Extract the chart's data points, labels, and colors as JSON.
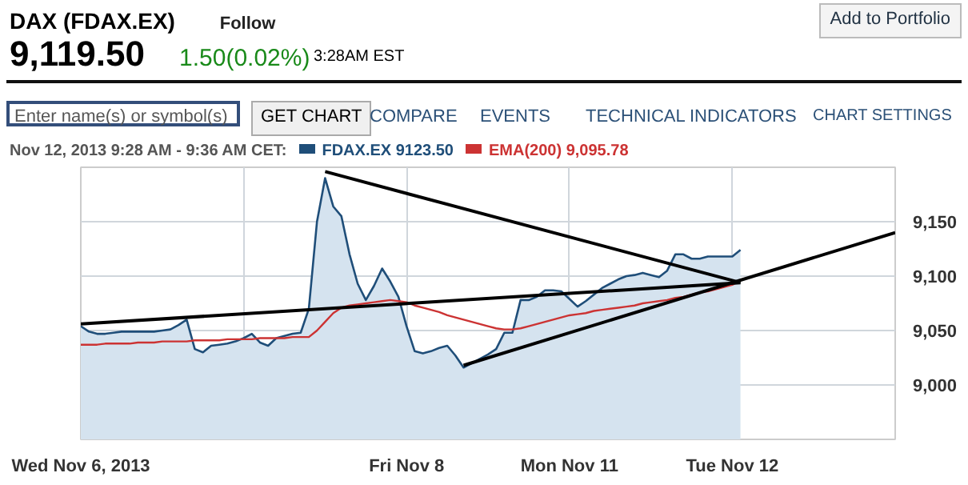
{
  "chart_data": {
    "type": "area",
    "title": "DAX (FDAX.EX)",
    "subtitle": "9,119.50",
    "annotations": [
      "Follow",
      "Add to Portfolio",
      "1.50(0.02%)",
      "3:28AM EST",
      "Enter name(s) or symbol(s)",
      "GET CHART",
      "COMPARE",
      "EVENTS",
      "TECHNICAL INDICATORS",
      "CHART SETTINGS"
    ],
    "legend_title": "Nov 12, 2013 9:28 AM - 9:36 AM CET:",
    "categories": [
      "Wed Nov 6, 2013",
      null,
      null,
      null,
      null,
      null,
      null,
      null,
      null,
      null,
      null,
      null,
      null,
      null,
      null,
      null,
      null,
      null,
      null,
      null,
      null,
      null,
      null,
      null,
      null,
      null,
      null,
      null,
      null,
      null,
      null,
      null,
      null,
      null,
      null,
      null,
      null,
      null,
      null,
      null,
      "Fri Nov 8",
      null,
      null,
      null,
      null,
      null,
      null,
      null,
      null,
      null,
      null,
      null,
      null,
      null,
      null,
      null,
      null,
      null,
      null,
      null,
      "Mon Nov 11",
      null,
      null,
      null,
      null,
      null,
      null,
      null,
      null,
      null,
      null,
      null,
      null,
      null,
      null,
      null,
      null,
      null,
      null,
      null,
      "Tue Nov 12",
      null,
      null,
      null,
      null,
      null,
      null,
      null,
      null,
      null,
      null,
      null,
      null,
      null,
      null,
      null,
      null,
      null,
      null,
      null,
      null
    ],
    "ylim": [
      8950,
      9200
    ],
    "yticks": [
      {
        "value": 9000,
        "label": "9,000"
      },
      {
        "value": 9050,
        "label": "9,050"
      },
      {
        "value": 9100,
        "label": "9,100"
      },
      {
        "value": 9150,
        "label": "9,150"
      }
    ],
    "grid": true,
    "legend": "top left",
    "series": [
      {
        "name": "FDAX.EX 9123.50",
        "color": "#1f4e79",
        "values": [
          9054,
          9049,
          9047,
          9047,
          9048,
          9049,
          9049,
          9049,
          9049,
          9049,
          9050,
          9051,
          9055,
          9060,
          9033,
          9030,
          9036,
          9037,
          9038,
          9040,
          9043,
          9047,
          9039,
          9036,
          9043,
          9045,
          9047,
          9048,
          9070,
          9150,
          9190,
          9164,
          9155,
          9120,
          9093,
          9078,
          9091,
          9107,
          9095,
          9081,
          9054,
          9031,
          9029,
          9031,
          9034,
          9036,
          9027,
          9016,
          9020,
          9024,
          9028,
          9033,
          9048,
          9048,
          9078,
          9078,
          9081,
          9087,
          9087,
          9086,
          9079,
          9072,
          9077,
          9083,
          9089,
          9093,
          9097,
          9100,
          9101,
          9103,
          9101,
          9099,
          9105,
          9120,
          9120,
          9116,
          9116,
          9118,
          9118,
          9118,
          9118,
          9124,
          null,
          null,
          null,
          null,
          null,
          null,
          null,
          null,
          null,
          null,
          null,
          null,
          null,
          null,
          null,
          null,
          null,
          null,
          null
        ]
      },
      {
        "name": "EMA(200) 9,095.78",
        "type": "line",
        "color": "#cc3333",
        "values": [
          9037,
          9037,
          9037,
          9038,
          9038,
          9038,
          9038,
          9039,
          9039,
          9039,
          9040,
          9040,
          9040,
          9040,
          9041,
          9041,
          9041,
          9041,
          9042,
          9042,
          9042,
          9042,
          9043,
          9043,
          9043,
          9043,
          9044,
          9044,
          9044,
          9050,
          9058,
          9066,
          9071,
          9073,
          9074,
          9075,
          9076,
          9077,
          9078,
          9077,
          9076,
          9073,
          9071,
          9069,
          9067,
          9064,
          9062,
          9060,
          9058,
          9056,
          9054,
          9052,
          9051,
          9051,
          9052,
          9054,
          9056,
          9058,
          9060,
          9062,
          9064,
          9065,
          9066,
          9068,
          9069,
          9070,
          9071,
          9072,
          9073,
          9075,
          9076,
          9077,
          9078,
          9080,
          9081,
          9083,
          9085,
          9086,
          9088,
          9090,
          9092,
          9096,
          null,
          null,
          null,
          null,
          null,
          null,
          null,
          null,
          null,
          null,
          null,
          null,
          null,
          null,
          null,
          null,
          null,
          null,
          null
        ]
      },
      {
        "type": "line",
        "color": "#000000",
        "values": [
          null,
          null,
          null,
          null,
          null,
          null,
          null,
          null,
          null,
          null,
          null,
          null,
          null,
          null,
          null,
          null,
          null,
          null,
          null,
          null,
          null,
          null,
          null,
          null,
          null,
          null,
          null,
          null,
          null,
          null,
          9196,
          null,
          null,
          null,
          null,
          null,
          null,
          null,
          null,
          null,
          null,
          null,
          null,
          null,
          null,
          null,
          null,
          null,
          null,
          null,
          null,
          null,
          null,
          null,
          null,
          null,
          null,
          null,
          null,
          null,
          null,
          null,
          null,
          null,
          null,
          null,
          null,
          null,
          null,
          null,
          null,
          null,
          null,
          null,
          null,
          null,
          null,
          null,
          null,
          null,
          null,
          9094,
          null,
          null,
          null,
          null,
          null,
          null,
          null,
          null,
          null,
          null,
          null,
          null,
          null,
          null,
          null,
          null,
          null,
          null,
          null
        ]
      },
      {
        "type": "line",
        "color": "#000000",
        "values": [
          9056,
          null,
          null,
          null,
          null,
          null,
          null,
          null,
          null,
          null,
          null,
          null,
          null,
          null,
          null,
          null,
          null,
          null,
          null,
          null,
          null,
          null,
          null,
          null,
          null,
          null,
          null,
          null,
          null,
          null,
          null,
          null,
          null,
          null,
          null,
          null,
          null,
          null,
          null,
          null,
          null,
          null,
          null,
          null,
          null,
          null,
          null,
          null,
          null,
          null,
          null,
          null,
          null,
          null,
          null,
          null,
          null,
          null,
          null,
          null,
          null,
          null,
          null,
          null,
          null,
          null,
          null,
          null,
          null,
          null,
          null,
          null,
          null,
          null,
          null,
          null,
          null,
          null,
          null,
          null,
          null,
          9094,
          null,
          null,
          null,
          null,
          null,
          null,
          null,
          null,
          null,
          null,
          null,
          null,
          null,
          null,
          null,
          null,
          null,
          null,
          null
        ]
      },
      {
        "type": "line",
        "color": "#000000",
        "values": [
          null,
          null,
          null,
          null,
          null,
          null,
          null,
          null,
          null,
          null,
          null,
          null,
          null,
          null,
          null,
          null,
          null,
          null,
          null,
          null,
          null,
          null,
          null,
          null,
          null,
          null,
          null,
          null,
          null,
          null,
          null,
          null,
          null,
          null,
          null,
          null,
          null,
          null,
          null,
          null,
          null,
          null,
          null,
          null,
          null,
          null,
          null,
          9018,
          null,
          null,
          null,
          null,
          null,
          null,
          null,
          null,
          null,
          null,
          null,
          null,
          null,
          null,
          null,
          null,
          null,
          null,
          null,
          null,
          null,
          null,
          null,
          null,
          null,
          null,
          null,
          null,
          null,
          null,
          null,
          null,
          null,
          null,
          null,
          null,
          null,
          null,
          null,
          null,
          null,
          null,
          null,
          null,
          null,
          null,
          null,
          null,
          null,
          null,
          null,
          null,
          9140
        ]
      }
    ]
  }
}
